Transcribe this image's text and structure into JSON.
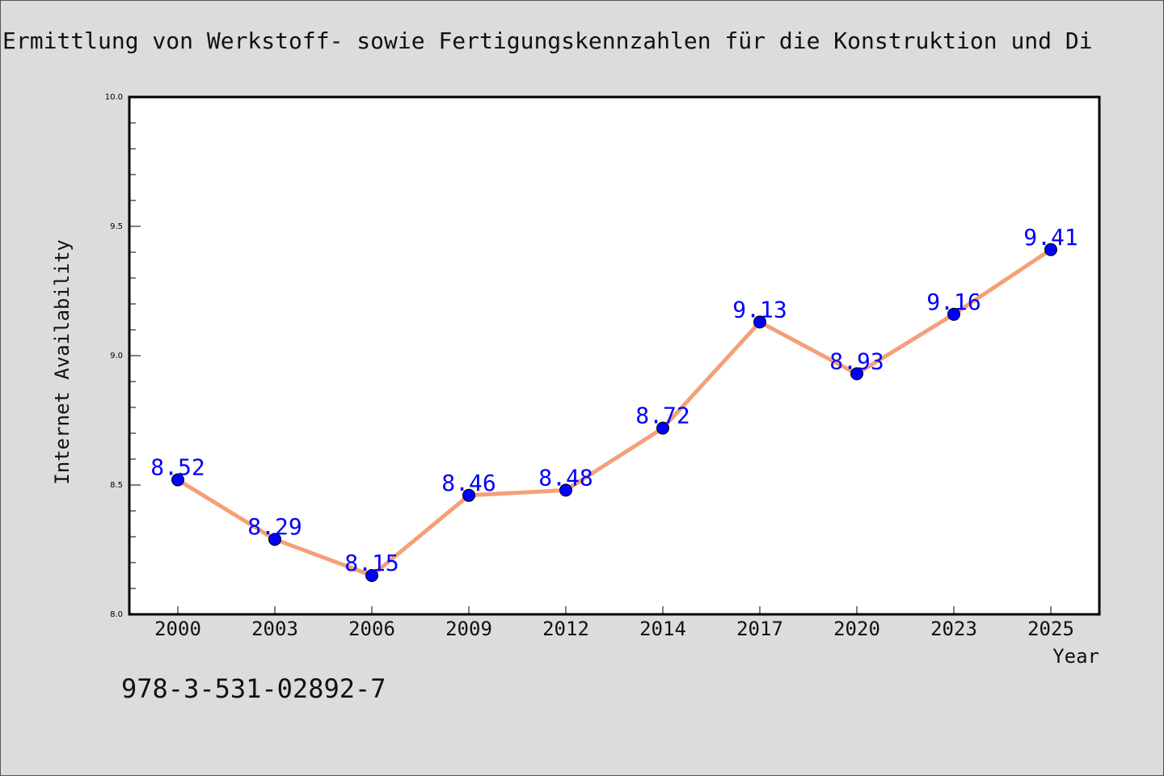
{
  "chart_data": {
    "type": "line",
    "title": "Ermittlung von Werkstoff- sowie Fertigungskennzahlen für die Konstruktion und Di",
    "xlabel": "Year",
    "ylabel": "Internet Availability",
    "categories": [
      "2000",
      "2003",
      "2006",
      "2009",
      "2012",
      "2014",
      "2017",
      "2020",
      "2023",
      "2025"
    ],
    "values": [
      8.52,
      8.29,
      8.15,
      8.46,
      8.48,
      8.72,
      9.13,
      8.93,
      9.16,
      9.41
    ],
    "data_labels": [
      "8.52",
      "8.29",
      "8.15",
      "8.46",
      "8.48",
      "8.72",
      "9.13",
      "8.93",
      "9.16",
      "9.41"
    ],
    "ylim": [
      8.0,
      10.0
    ],
    "yticks": [
      "8.0",
      "8.5",
      "9.0",
      "9.5",
      "10.0"
    ],
    "ytick_values": [
      8.0,
      8.5,
      9.0,
      9.5,
      10.0
    ],
    "grid": false,
    "colors": {
      "line": "#f4a07a",
      "marker": "#0000ff",
      "label": "#0000ff",
      "plot_background": "#ffffff",
      "page_background": "#dcdcdc"
    }
  },
  "footer": {
    "code": "978-3-531-02892-7"
  }
}
